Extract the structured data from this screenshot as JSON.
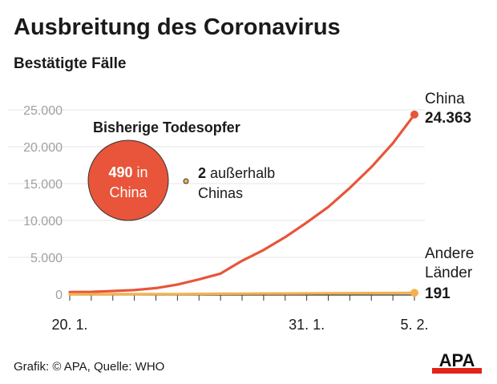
{
  "header": {
    "title": "Ausbreitung des Coronavirus",
    "subtitle": "Bestätigte Fälle"
  },
  "footer": {
    "credit": "Grafik: © APA, Quelle: WHO",
    "logo_text": "APA"
  },
  "colors": {
    "china": "#e8553a",
    "other": "#f3b24c",
    "grid": "#e6e6e6",
    "tick_text": "#a0a0a0",
    "text": "#1a1a1a"
  },
  "deaths_box": {
    "heading": "Bisherige Todesopfer",
    "china_count": "490",
    "china_text_a": "in",
    "china_text_b": "China",
    "outside_count": "2",
    "outside_text_a": "außerhalb",
    "outside_text_b": "Chinas"
  },
  "chart_data": {
    "type": "line",
    "x": [
      "20. 1.",
      "21. 1.",
      "22. 1.",
      "23. 1.",
      "24. 1.",
      "25. 1.",
      "26. 1.",
      "27. 1.",
      "28. 1.",
      "29. 1.",
      "30. 1.",
      "31. 1.",
      "1. 2.",
      "2. 2.",
      "3. 2.",
      "4. 2.",
      "5. 2."
    ],
    "x_tick_labels": [
      "20. 1.",
      "31. 1.",
      "5. 2."
    ],
    "series": [
      {
        "name": "China",
        "values": [
          278,
          310,
          440,
          570,
          830,
          1320,
          2014,
          2798,
          4537,
          5997,
          7736,
          9720,
          11821,
          14411,
          17238,
          20471,
          24363
        ],
        "end_label": "China",
        "end_value": "24.363"
      },
      {
        "name": "Andere Länder",
        "values": [
          4,
          4,
          6,
          11,
          17,
          27,
          43,
          64,
          73,
          93,
          98,
          106,
          132,
          146,
          153,
          159,
          191
        ],
        "end_label_a": "Andere",
        "end_label_b": "Länder",
        "end_value": "191"
      }
    ],
    "ylim": [
      0,
      25000
    ],
    "y_ticks": [
      0,
      5000,
      10000,
      15000,
      20000,
      25000
    ],
    "y_tick_labels": [
      "0",
      "5.000",
      "10.000",
      "15.000",
      "20.000",
      "25.000"
    ],
    "grid": true
  }
}
